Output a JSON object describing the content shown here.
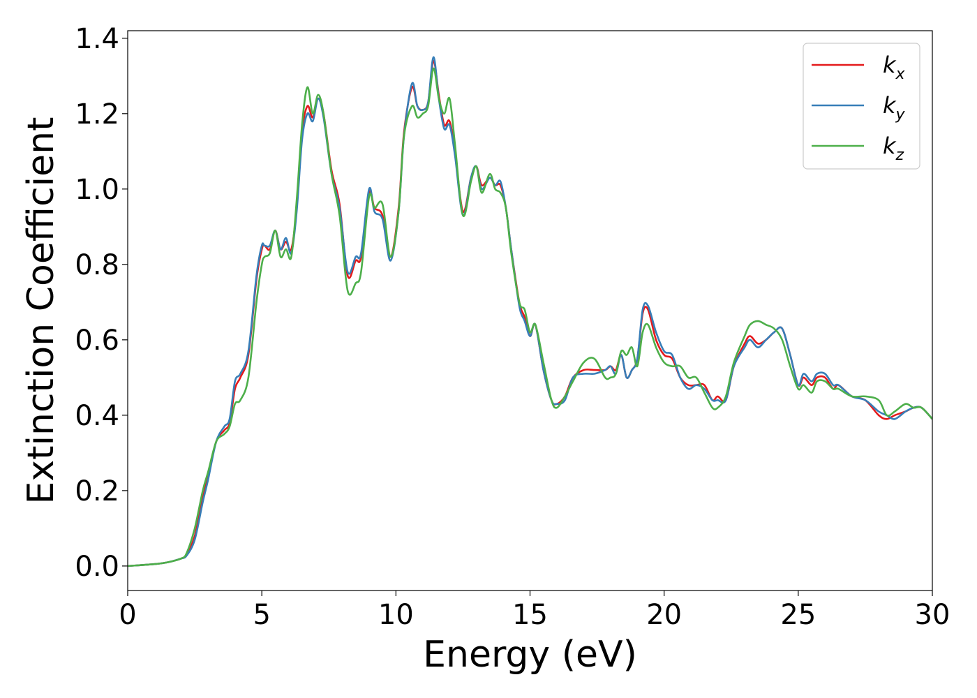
{
  "chart_data": {
    "type": "line",
    "title": "",
    "xlabel": "Energy (eV)",
    "ylabel": "Extinction Coefficient",
    "xlim": [
      0,
      30
    ],
    "ylim": [
      -0.065,
      1.42
    ],
    "xticks": [
      0,
      5,
      10,
      15,
      20,
      25,
      30
    ],
    "xtick_labels": [
      "0",
      "5",
      "10",
      "15",
      "20",
      "25",
      "30"
    ],
    "yticks": [
      0.0,
      0.2,
      0.4,
      0.6,
      0.8,
      1.0,
      1.2,
      1.4
    ],
    "ytick_labels": [
      "0.0",
      "0.2",
      "0.4",
      "0.6",
      "0.8",
      "1.0",
      "1.2",
      "1.4"
    ],
    "grid": false,
    "legend_position": "top-right",
    "series": [
      {
        "name": "k_x",
        "label_main": "k",
        "label_sub": "x",
        "color": "#e41a1c",
        "x": [
          0,
          1,
          1.5,
          2,
          2.2,
          2.5,
          2.8,
          3,
          3.3,
          3.6,
          3.8,
          4,
          4.2,
          4.5,
          4.8,
          5,
          5.1,
          5.3,
          5.5,
          5.7,
          5.9,
          6.1,
          6.3,
          6.5,
          6.7,
          6.9,
          7.1,
          7.3,
          7.6,
          7.9,
          8.2,
          8.5,
          8.7,
          9,
          9.2,
          9.5,
          9.8,
          10.1,
          10.3,
          10.6,
          10.8,
          11,
          11.2,
          11.4,
          11.6,
          11.8,
          12,
          12.2,
          12.5,
          12.8,
          13,
          13.2,
          13.5,
          13.7,
          13.9,
          14.1,
          14.3,
          14.6,
          14.8,
          15,
          15.2,
          15.5,
          15.8,
          16,
          16.3,
          16.6,
          17,
          17.4,
          17.8,
          18,
          18.2,
          18.4,
          18.6,
          18.8,
          19,
          19.2,
          19.4,
          19.7,
          20,
          20.3,
          20.6,
          20.9,
          21.2,
          21.5,
          21.8,
          22,
          22.3,
          22.6,
          23,
          23.2,
          23.5,
          23.8,
          24.1,
          24.4,
          24.7,
          25,
          25.2,
          25.5,
          25.7,
          26,
          26.3,
          26.5,
          27,
          27.5,
          28,
          28.3,
          28.6,
          29,
          29.3,
          29.6,
          30
        ],
        "y": [
          0,
          0.005,
          0.01,
          0.02,
          0.03,
          0.08,
          0.18,
          0.24,
          0.33,
          0.36,
          0.38,
          0.47,
          0.5,
          0.56,
          0.76,
          0.84,
          0.85,
          0.84,
          0.89,
          0.84,
          0.86,
          0.84,
          0.95,
          1.15,
          1.22,
          1.19,
          1.24,
          1.2,
          1.05,
          0.96,
          0.77,
          0.81,
          0.82,
          0.99,
          0.95,
          0.93,
          0.82,
          0.95,
          1.15,
          1.27,
          1.22,
          1.21,
          1.23,
          1.34,
          1.25,
          1.17,
          1.18,
          1.1,
          0.94,
          1.03,
          1.06,
          1.01,
          1.03,
          1.01,
          1.01,
          0.95,
          0.84,
          0.7,
          0.66,
          0.61,
          0.64,
          0.52,
          0.44,
          0.43,
          0.45,
          0.5,
          0.52,
          0.52,
          0.52,
          0.53,
          0.52,
          0.56,
          0.5,
          0.52,
          0.55,
          0.67,
          0.68,
          0.6,
          0.56,
          0.55,
          0.5,
          0.48,
          0.48,
          0.48,
          0.44,
          0.45,
          0.44,
          0.53,
          0.59,
          0.61,
          0.59,
          0.6,
          0.62,
          0.63,
          0.56,
          0.48,
          0.5,
          0.48,
          0.5,
          0.5,
          0.47,
          0.48,
          0.45,
          0.44,
          0.4,
          0.39,
          0.4,
          0.41,
          0.42,
          0.42,
          0.39
        ]
      },
      {
        "name": "k_y",
        "label_main": "k",
        "label_sub": "y",
        "color": "#377eb8",
        "x": [
          0,
          1,
          1.5,
          2,
          2.2,
          2.5,
          2.8,
          3,
          3.3,
          3.6,
          3.8,
          4,
          4.2,
          4.5,
          4.8,
          5,
          5.1,
          5.3,
          5.5,
          5.7,
          5.9,
          6.1,
          6.3,
          6.5,
          6.7,
          6.9,
          7.1,
          7.3,
          7.6,
          7.9,
          8.2,
          8.5,
          8.7,
          9,
          9.2,
          9.5,
          9.8,
          10.1,
          10.3,
          10.6,
          10.8,
          11,
          11.2,
          11.4,
          11.6,
          11.8,
          12,
          12.2,
          12.5,
          12.8,
          13,
          13.2,
          13.5,
          13.7,
          13.9,
          14.1,
          14.3,
          14.6,
          14.8,
          15,
          15.2,
          15.5,
          15.8,
          16,
          16.3,
          16.6,
          17,
          17.4,
          17.8,
          18,
          18.2,
          18.4,
          18.6,
          18.8,
          19,
          19.2,
          19.4,
          19.7,
          20,
          20.3,
          20.6,
          20.9,
          21.2,
          21.5,
          21.8,
          22,
          22.3,
          22.6,
          23,
          23.2,
          23.5,
          23.8,
          24.1,
          24.4,
          24.7,
          25,
          25.2,
          25.5,
          25.7,
          26,
          26.3,
          26.5,
          27,
          27.5,
          28,
          28.3,
          28.6,
          29,
          29.3,
          29.6,
          30
        ],
        "y": [
          0,
          0.005,
          0.01,
          0.02,
          0.028,
          0.07,
          0.17,
          0.23,
          0.33,
          0.37,
          0.39,
          0.49,
          0.51,
          0.57,
          0.77,
          0.85,
          0.85,
          0.85,
          0.89,
          0.84,
          0.87,
          0.83,
          0.94,
          1.13,
          1.2,
          1.18,
          1.24,
          1.19,
          1.04,
          0.95,
          0.78,
          0.82,
          0.83,
          1.0,
          0.94,
          0.92,
          0.81,
          0.94,
          1.14,
          1.28,
          1.22,
          1.21,
          1.23,
          1.35,
          1.24,
          1.16,
          1.17,
          1.09,
          0.93,
          1.03,
          1.06,
          1.0,
          1.03,
          1.01,
          1.02,
          0.95,
          0.84,
          0.69,
          0.65,
          0.61,
          0.64,
          0.52,
          0.44,
          0.43,
          0.44,
          0.5,
          0.51,
          0.51,
          0.52,
          0.53,
          0.51,
          0.56,
          0.5,
          0.52,
          0.55,
          0.68,
          0.69,
          0.62,
          0.57,
          0.56,
          0.5,
          0.47,
          0.48,
          0.47,
          0.44,
          0.44,
          0.44,
          0.53,
          0.58,
          0.6,
          0.58,
          0.6,
          0.62,
          0.63,
          0.56,
          0.48,
          0.51,
          0.49,
          0.51,
          0.51,
          0.48,
          0.48,
          0.45,
          0.44,
          0.41,
          0.4,
          0.39,
          0.41,
          0.42,
          0.42,
          0.39
        ]
      },
      {
        "name": "k_z",
        "label_main": "k",
        "label_sub": "z",
        "color": "#4daf4a",
        "x": [
          0,
          1,
          1.5,
          2,
          2.2,
          2.5,
          2.8,
          3,
          3.3,
          3.6,
          3.8,
          4,
          4.2,
          4.5,
          4.8,
          5,
          5.1,
          5.3,
          5.5,
          5.7,
          5.9,
          6.1,
          6.3,
          6.5,
          6.7,
          6.9,
          7.1,
          7.3,
          7.6,
          7.9,
          8.2,
          8.5,
          8.7,
          9,
          9.2,
          9.5,
          9.8,
          10.1,
          10.3,
          10.6,
          10.8,
          11,
          11.2,
          11.4,
          11.6,
          11.8,
          12,
          12.2,
          12.5,
          12.8,
          13,
          13.2,
          13.5,
          13.7,
          13.9,
          14.1,
          14.3,
          14.6,
          14.8,
          15,
          15.2,
          15.5,
          15.8,
          16,
          16.3,
          16.6,
          17,
          17.4,
          17.8,
          18,
          18.2,
          18.4,
          18.6,
          18.8,
          19,
          19.2,
          19.4,
          19.7,
          20,
          20.3,
          20.6,
          20.9,
          21.2,
          21.5,
          21.8,
          22,
          22.3,
          22.6,
          23,
          23.2,
          23.5,
          23.8,
          24.1,
          24.4,
          24.7,
          25,
          25.2,
          25.5,
          25.7,
          26,
          26.3,
          26.5,
          27,
          27.5,
          28,
          28.3,
          28.6,
          29,
          29.3,
          29.6,
          30
        ],
        "y": [
          0,
          0.005,
          0.01,
          0.02,
          0.035,
          0.1,
          0.2,
          0.25,
          0.33,
          0.35,
          0.37,
          0.43,
          0.44,
          0.5,
          0.7,
          0.8,
          0.82,
          0.83,
          0.89,
          0.82,
          0.84,
          0.82,
          0.97,
          1.17,
          1.27,
          1.2,
          1.25,
          1.2,
          1.04,
          0.93,
          0.73,
          0.75,
          0.78,
          0.98,
          0.95,
          0.96,
          0.82,
          0.94,
          1.14,
          1.22,
          1.19,
          1.2,
          1.22,
          1.32,
          1.24,
          1.2,
          1.24,
          1.12,
          0.93,
          1.02,
          1.06,
          0.99,
          1.04,
          1.0,
          0.99,
          0.95,
          0.83,
          0.7,
          0.68,
          0.62,
          0.64,
          0.54,
          0.44,
          0.42,
          0.45,
          0.49,
          0.54,
          0.55,
          0.5,
          0.5,
          0.51,
          0.57,
          0.56,
          0.58,
          0.53,
          0.62,
          0.64,
          0.58,
          0.54,
          0.53,
          0.53,
          0.5,
          0.5,
          0.46,
          0.42,
          0.42,
          0.45,
          0.54,
          0.61,
          0.64,
          0.65,
          0.64,
          0.63,
          0.6,
          0.53,
          0.47,
          0.48,
          0.46,
          0.49,
          0.49,
          0.47,
          0.47,
          0.45,
          0.45,
          0.44,
          0.4,
          0.41,
          0.43,
          0.42,
          0.42,
          0.39
        ]
      }
    ]
  }
}
